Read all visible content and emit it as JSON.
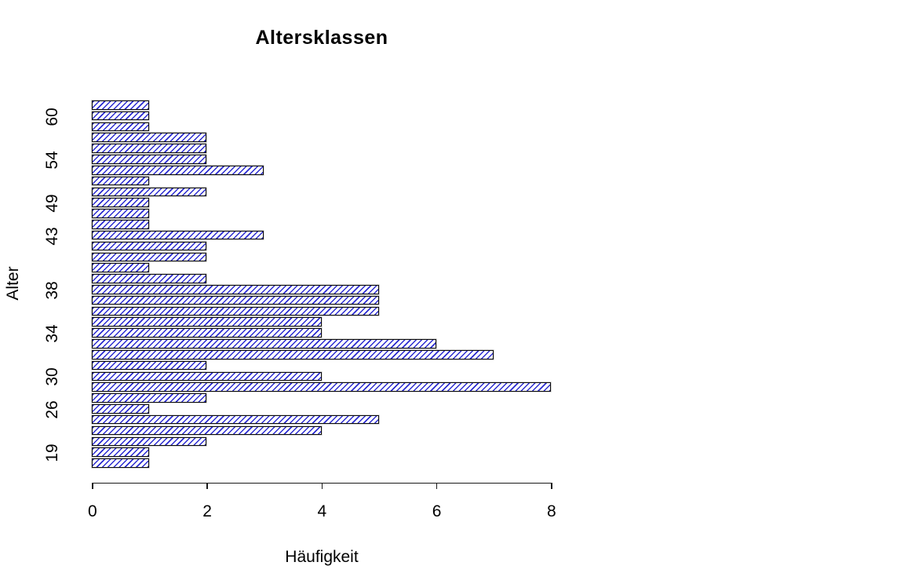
{
  "chart_data": {
    "type": "bar",
    "orientation": "horizontal",
    "title": "Altersklassen",
    "xlabel": "Häufigkeit",
    "ylabel": "Alter",
    "xlim": [
      0,
      8
    ],
    "x_ticks": [
      "0",
      "2",
      "4",
      "6",
      "8"
    ],
    "bar_values_top_to_bottom": [
      1,
      1,
      1,
      2,
      2,
      2,
      3,
      1,
      2,
      1,
      1,
      1,
      3,
      2,
      2,
      1,
      2,
      5,
      5,
      5,
      4,
      4,
      6,
      7,
      2,
      4,
      8,
      2,
      1,
      5,
      4,
      2,
      1,
      1
    ],
    "y_axis_labels": [
      {
        "label": "60",
        "bar_index_from_top": 2
      },
      {
        "label": "54",
        "bar_index_from_top": 6
      },
      {
        "label": "49",
        "bar_index_from_top": 10
      },
      {
        "label": "43",
        "bar_index_from_top": 13
      },
      {
        "label": "38",
        "bar_index_from_top": 18
      },
      {
        "label": "34",
        "bar_index_from_top": 22
      },
      {
        "label": "30",
        "bar_index_from_top": 26
      },
      {
        "label": "26",
        "bar_index_from_top": 29
      },
      {
        "label": "19",
        "bar_index_from_top": 33
      }
    ],
    "legend": null,
    "grid": false,
    "colors": {
      "background": "#ffffff",
      "bar_fill": "#ffffff",
      "bar_hatch": "#2b2bd0",
      "bar_border": "#0a0a0a",
      "axis": "#1a1a1a",
      "text": "#000000"
    },
    "bar_style": "diagonal-hatch-45deg"
  }
}
